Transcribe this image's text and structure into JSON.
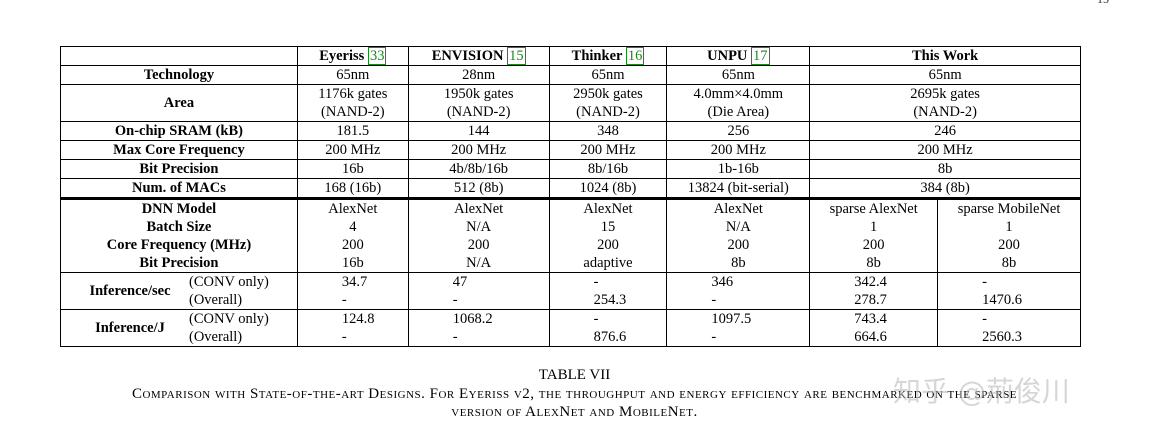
{
  "page_number": "15",
  "header": {
    "corner": "",
    "columns": [
      {
        "name": "Eyeriss",
        "ref": "33"
      },
      {
        "name": "ENVISION",
        "ref": "15"
      },
      {
        "name": "Thinker",
        "ref": "16"
      },
      {
        "name": "UNPU",
        "ref": "17"
      },
      {
        "name": "This Work",
        "ref": ""
      }
    ]
  },
  "hw_rows": [
    {
      "label": "Technology",
      "values": [
        "65nm",
        "28nm",
        "65nm",
        "65nm",
        "65nm"
      ]
    },
    {
      "label": "Area",
      "values": [
        [
          "1176k gates",
          "(NAND-2)"
        ],
        [
          "1950k gates",
          "(NAND-2)"
        ],
        [
          "2950k gates",
          "(NAND-2)"
        ],
        [
          "4.0mm×4.0mm",
          "(Die Area)"
        ],
        [
          "2695k gates",
          "(NAND-2)"
        ]
      ]
    },
    {
      "label": "On-chip SRAM (kB)",
      "values": [
        "181.5",
        "144",
        "348",
        "256",
        "246"
      ]
    },
    {
      "label": "Max Core Frequency",
      "values": [
        "200 MHz",
        "200 MHz",
        "200 MHz",
        "200 MHz",
        "200 MHz"
      ]
    },
    {
      "label": "Bit Precision",
      "values": [
        "16b",
        "4b/8b/16b",
        "8b/16b",
        "1b-16b",
        "8b"
      ]
    },
    {
      "label": "Num. of MACs",
      "values": [
        "168 (16b)",
        "512 (8b)",
        "1024 (8b)",
        "13824 (bit-serial)",
        "384 (8b)"
      ]
    }
  ],
  "dnn_rows": [
    {
      "label": "DNN Model",
      "values": [
        "AlexNet",
        "AlexNet",
        "AlexNet",
        "AlexNet",
        "sparse AlexNet",
        "sparse MobileNet"
      ]
    },
    {
      "label": "Batch Size",
      "values": [
        "4",
        "N/A",
        "15",
        "N/A",
        "1",
        "1"
      ]
    },
    {
      "label": "Core Frequency (MHz)",
      "values": [
        "200",
        "200",
        "200",
        "200",
        "200",
        "200"
      ]
    },
    {
      "label": "Bit Precision",
      "values": [
        "16b",
        "N/A",
        "adaptive",
        "8b",
        "8b",
        "8b"
      ]
    }
  ],
  "perf_groups": [
    {
      "label": "Inference/sec",
      "rows": [
        {
          "sub": "(CONV only)",
          "values": [
            "34.7",
            "47",
            "-",
            "346",
            "342.4",
            "-"
          ]
        },
        {
          "sub": "(Overall)",
          "values": [
            "-",
            "-",
            "254.3",
            "-",
            "278.7",
            "1470.6"
          ]
        }
      ]
    },
    {
      "label": "Inference/J",
      "rows": [
        {
          "sub": "(CONV only)",
          "values": [
            "124.8",
            "1068.2",
            "-",
            "1097.5",
            "743.4",
            "-"
          ]
        },
        {
          "sub": "(Overall)",
          "values": [
            "-",
            "-",
            "876.6",
            "-",
            "664.6",
            "2560.3"
          ]
        }
      ]
    }
  ],
  "caption": {
    "title": "TABLE VII",
    "line1": "Comparison with State-of-the-art Designs. For Eyeriss v2, the throughput and energy efficiency are benchmarked on the sparse",
    "line2": "version of AlexNet and MobileNet."
  },
  "watermark": "知乎 @荊俊川"
}
